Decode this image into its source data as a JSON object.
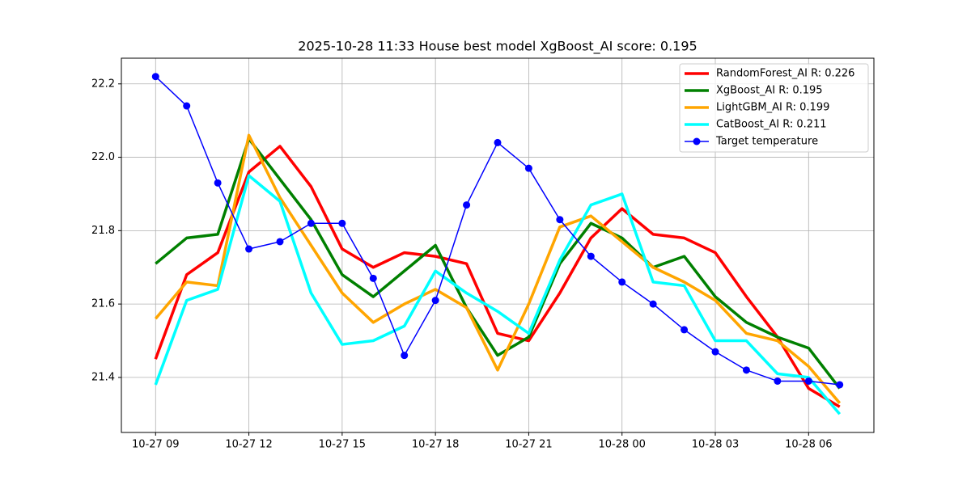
{
  "chart_data": {
    "type": "line",
    "title": "2025-10-28 11:33 House best model XgBoost_AI score: 0.195",
    "x": [
      "10-27 09",
      "10-27 10",
      "10-27 11",
      "10-27 12",
      "10-27 13",
      "10-27 14",
      "10-27 15",
      "10-27 16",
      "10-27 17",
      "10-27 18",
      "10-27 19",
      "10-27 20",
      "10-27 21",
      "10-27 22",
      "10-27 23",
      "10-28 00",
      "10-28 01",
      "10-28 02",
      "10-28 03",
      "10-28 04",
      "10-28 05",
      "10-28 06",
      "10-28 07"
    ],
    "series": [
      {
        "name": "RandomForest_AI R: 0.226",
        "color": "#ff0000",
        "values": [
          21.45,
          21.68,
          21.74,
          21.96,
          22.03,
          21.92,
          21.75,
          21.7,
          21.74,
          21.73,
          21.71,
          21.52,
          21.5,
          21.63,
          21.78,
          21.86,
          21.79,
          21.78,
          21.74,
          21.62,
          21.51,
          21.37,
          21.32
        ]
      },
      {
        "name": "XgBoost_AI R: 0.195",
        "color": "#008000",
        "values": [
          21.71,
          21.78,
          21.79,
          22.05,
          21.94,
          21.83,
          21.68,
          21.62,
          21.69,
          21.76,
          21.59,
          21.46,
          21.51,
          21.71,
          21.82,
          21.78,
          21.7,
          21.73,
          21.62,
          21.55,
          21.51,
          21.48,
          21.37
        ]
      },
      {
        "name": "LightGBM_AI R: 0.199",
        "color": "#ffa500",
        "values": [
          21.56,
          21.66,
          21.65,
          22.06,
          21.89,
          21.76,
          21.63,
          21.55,
          21.6,
          21.64,
          21.59,
          21.42,
          21.6,
          21.81,
          21.84,
          21.77,
          21.7,
          21.66,
          21.61,
          21.52,
          21.5,
          21.43,
          21.33
        ]
      },
      {
        "name": "CatBoost_AI R: 0.211",
        "color": "#00ffff",
        "values": [
          21.38,
          21.61,
          21.64,
          21.95,
          21.88,
          21.63,
          21.49,
          21.5,
          21.54,
          21.69,
          21.63,
          21.58,
          21.52,
          21.72,
          21.87,
          21.9,
          21.66,
          21.65,
          21.5,
          21.5,
          21.41,
          21.4,
          21.3
        ]
      },
      {
        "name": "Target temperature",
        "color": "#0000ff",
        "marker": "o",
        "values": [
          22.22,
          22.14,
          21.93,
          21.75,
          21.77,
          21.82,
          21.82,
          21.67,
          21.46,
          21.61,
          21.87,
          22.04,
          21.97,
          21.83,
          21.73,
          21.66,
          21.6,
          21.53,
          21.47,
          21.42,
          21.39,
          21.39,
          21.38
        ]
      }
    ],
    "xticks": [
      "10-27 09",
      "10-27 12",
      "10-27 15",
      "10-27 18",
      "10-27 21",
      "10-28 00",
      "10-28 03",
      "10-28 06"
    ],
    "ylim": [
      21.25,
      22.27
    ],
    "yticks": [
      21.4,
      21.6,
      21.8,
      {
        "value": 22,
        "label": "22.0"
      },
      22.2
    ],
    "grid": true,
    "legend": "upper right"
  }
}
